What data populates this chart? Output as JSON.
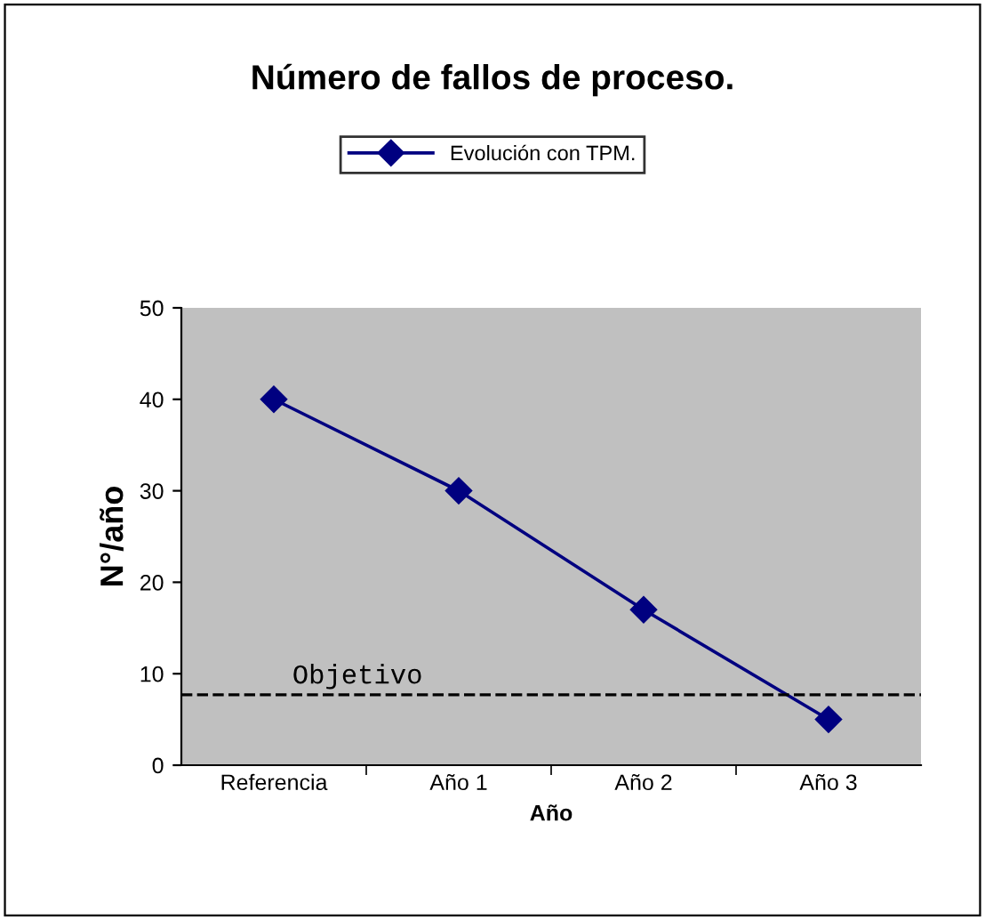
{
  "chart_data": {
    "type": "line",
    "title": "Número de fallos de proceso.",
    "xlabel": "Año",
    "ylabel": "N°/año",
    "categories": [
      "Referencia",
      "Año 1",
      "Año 2",
      "Año 3"
    ],
    "series": [
      {
        "name": "Evolución con TPM.",
        "color": "#000080",
        "values": [
          40,
          30,
          17,
          5
        ]
      }
    ],
    "ylim": [
      0,
      50
    ],
    "yticks": [
      0,
      10,
      20,
      30,
      40,
      50
    ],
    "grid": false,
    "legend": "top",
    "marker": "diamond",
    "line_style": "solid",
    "ref_lines": [
      {
        "axis": "y",
        "value": 7.7,
        "label": "Objetivo",
        "color": "#000000",
        "line_style": "dashed"
      }
    ]
  }
}
